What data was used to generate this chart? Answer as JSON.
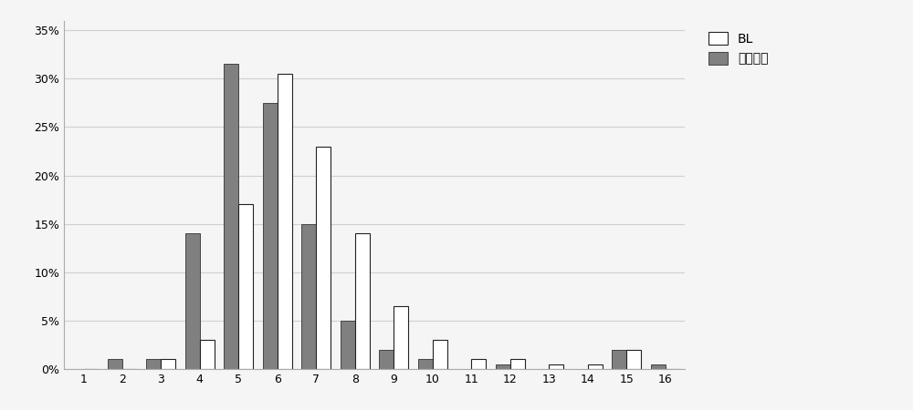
{
  "categories": [
    1,
    2,
    3,
    4,
    5,
    6,
    7,
    8,
    9,
    10,
    11,
    12,
    13,
    14,
    15,
    16
  ],
  "BL": [
    0,
    0,
    0.01,
    0.03,
    0.17,
    0.305,
    0.23,
    0.14,
    0.065,
    0.03,
    0.01,
    0.01,
    0.005,
    0.005,
    0.02,
    0
  ],
  "low_pressure": [
    0,
    0.01,
    0.01,
    0.14,
    0.315,
    0.275,
    0.15,
    0.05,
    0.02,
    0.01,
    0,
    0.005,
    0,
    0,
    0.02,
    0.005
  ],
  "legend_BL": "BL",
  "legend_low": "低压扩散",
  "bar_color_BL": "#ffffff",
  "bar_color_low": "#808080",
  "bar_edgecolor_BL": "#222222",
  "bar_edgecolor_low": "#444444",
  "ylim": [
    0,
    0.36
  ],
  "yticks": [
    0,
    0.05,
    0.1,
    0.15,
    0.2,
    0.25,
    0.3,
    0.35
  ],
  "background_color": "#f5f5f5",
  "grid_color": "#d0d0d0",
  "bar_width": 0.38,
  "xlabel": "",
  "ylabel": ""
}
